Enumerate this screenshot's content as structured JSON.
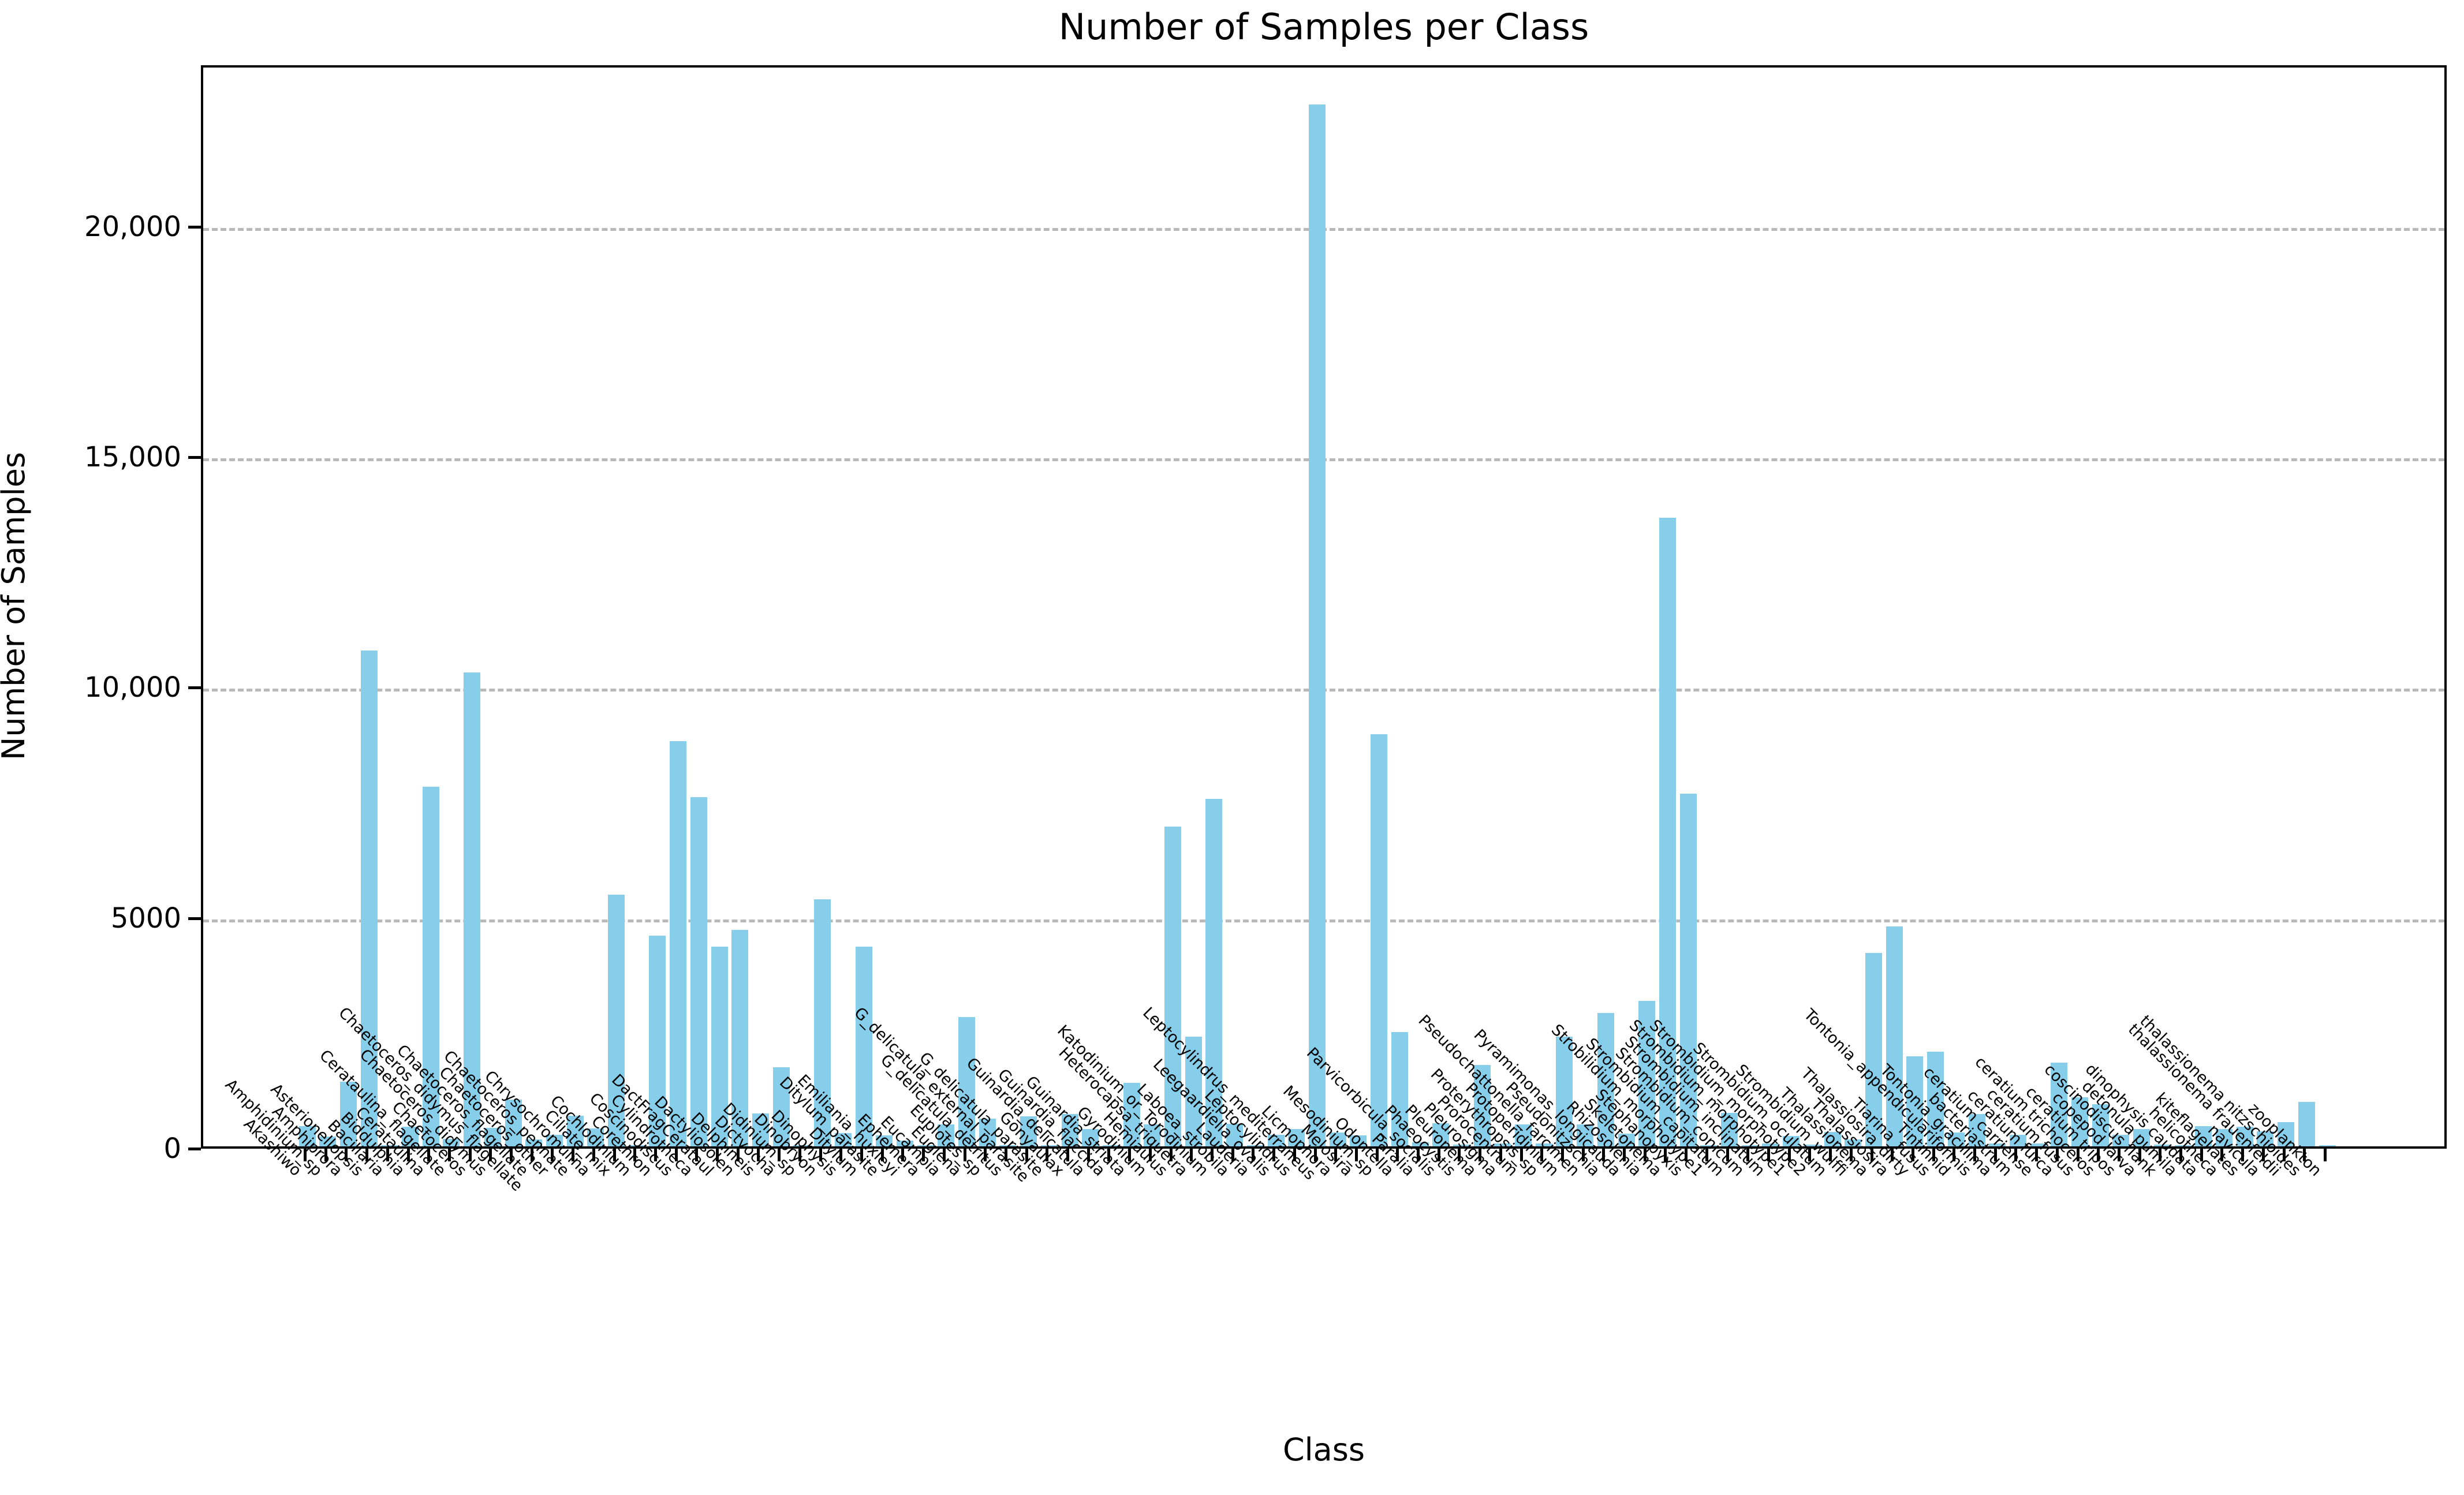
{
  "title": "Number of Samples per Class",
  "xlabel": "Class",
  "ylabel": "Number of Samples",
  "chart_data": {
    "type": "bar",
    "title": "Number of Samples per Class",
    "xlabel": "Class",
    "ylabel": "Number of Samples",
    "bar_color": "#87CEEB",
    "grid": "dashed horizontal",
    "grid_color": "#b9b9b9",
    "ylim": [
      0,
      23500
    ],
    "ytick_values": [
      0,
      5000,
      10000,
      15000,
      20000
    ],
    "ytick_labels": [
      "0",
      "5000",
      "10,000",
      "15,000",
      "20,000"
    ],
    "categories": [
      "Akashiwo",
      "Amphidinium_sp",
      "Amphiprora",
      "Asterionellopsis",
      "Bacillaria",
      "Biddulphia",
      "Cerataulina",
      "Cerataulina_flagellate",
      "Chaetoceros",
      "Chaetoceros_didymus",
      "Chaetoceros_didymus_flagellate",
      "Chaetoceros_flagellate",
      "Chaetoceros_other",
      "Chaetoceros_pennate",
      "Chrysochromulina",
      "Ciliate_mix",
      "Cochlodinium",
      "Corethron",
      "Coscinodiscus",
      "Cylindrotheca",
      "DactFragCerataul",
      "Dactyliosolen",
      "Delphineis",
      "Dictyocha",
      "Didinium_sp",
      "Dinobryon",
      "Dinophysis",
      "Ditylum",
      "Ditylum_parasite",
      "Emiliania_huxleyi",
      "Ephemera",
      "Eucampia",
      "Euglena",
      "Euplotes_sp",
      "G_delicatula_detritus",
      "G_delicatula_external_parasite",
      "G_delicatula_parasite",
      "Gonyaulax",
      "Guinardia_delicatula",
      "Guinardia_flaccida",
      "Guinardia_striata",
      "Gyrodinium",
      "Hemiaulus",
      "Heterocapsa_triquetra",
      "Katodinium_or_Torodinium",
      "Laboea_strobila",
      "Lauderia",
      "Leegaardiella_ovalis",
      "Leptocylindrus",
      "Leptocylindrus_mediterraneus",
      "Licmophora",
      "Melosira",
      "Mesodinium_sp",
      "Odontella",
      "Paralia",
      "Parvicorbicula_socialis",
      "Phaeocystis",
      "Pleuronema",
      "Pleurosigma",
      "Prorocentrum",
      "Proterythropsis_sp",
      "Protoperidinium",
      "Pseudochattonella_farcimen",
      "Pseudonitzschia",
      "Pyramimonas_longicauda",
      "Rhizosolenia",
      "Skeletonema",
      "Stephanopyxis",
      "Strobilidium_morphotype1",
      "Strombidium_capitatum",
      "Strombidium_conicum",
      "Strombidium_inclinatum",
      "Strombidium_morphotype1",
      "Strombidium_morphotype2",
      "Strombidium_oculatum",
      "Strombidium_wulffi",
      "Thalassionema",
      "Thalassiosira",
      "Thalassiosira_dirty",
      "Tiarina_fusus",
      "Tintinnid",
      "Tontonia_appendiculariformis",
      "Tontonia_gracillima",
      "bacteriastrum",
      "ceratium carriense",
      "ceratium furca",
      "ceratium fusus",
      "ceratium trichoceros",
      "ceratium tripos",
      "copepod larva",
      "coscinodiscus flank",
      "detonula pumila",
      "dinophysis caudata",
      "helicotheca",
      "kiteflagellates",
      "navicula",
      "thalassionema frauenfeldii",
      "thalassionema nitzschioides",
      "zooplankton"
    ],
    "values": [
      440,
      210,
      1400,
      10760,
      20,
      420,
      7800,
      160,
      10280,
      400,
      1020,
      150,
      250,
      660,
      390,
      5460,
      30,
      4570,
      8790,
      7570,
      4330,
      4690,
      710,
      1710,
      30,
      5360,
      290,
      4330,
      240,
      130,
      20,
      470,
      2810,
      600,
      20,
      650,
      30,
      700,
      370,
      20,
      1380,
      470,
      6930,
      2380,
      7540,
      490,
      30,
      250,
      370,
      22600,
      300,
      240,
      8940,
      2480,
      90,
      500,
      40,
      1760,
      60,
      470,
      60,
      2380,
      470,
      2890,
      270,
      3150,
      13640,
      7645,
      30,
      730,
      20,
      60,
      230,
      40,
      310,
      150,
      4200,
      4765,
      1950,
      2050,
      300,
      700,
      60,
      250,
      60,
      1810,
      1060,
      915,
      250,
      370,
      40,
      20,
      440,
      370,
      420,
      320,
      525,
      967,
      20
    ]
  }
}
